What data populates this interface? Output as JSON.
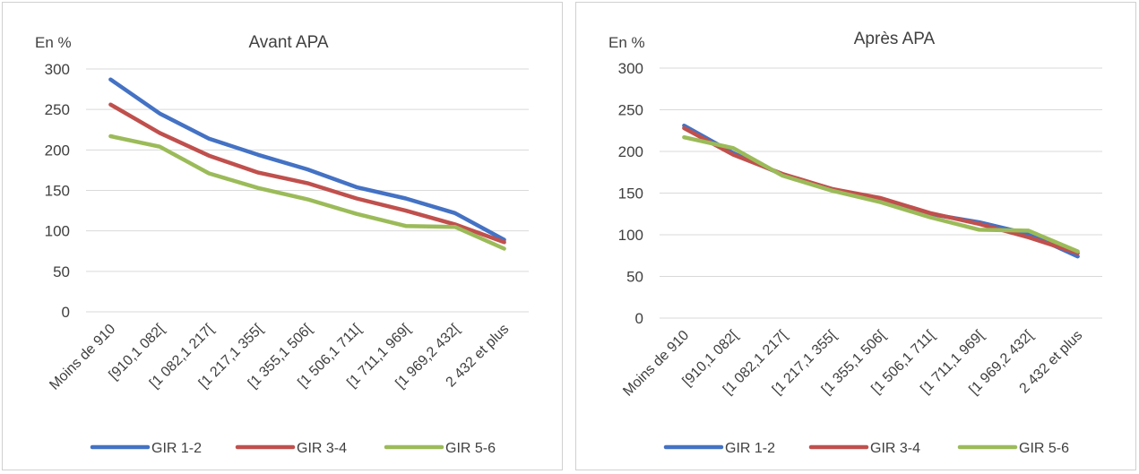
{
  "chart_data": [
    {
      "type": "line",
      "title": "Avant APA",
      "ylabel": "En %",
      "ylim": [
        0,
        300
      ],
      "yticks": [
        "0",
        "50",
        "100",
        "150",
        "200",
        "250",
        "300"
      ],
      "categories": [
        "Moins de 910",
        "[910,1 082[",
        "[1 082,1 217[",
        "[1 217,1 355[",
        "[1 355,1 506[",
        "[1 506,1 711[",
        "[1 711,1 969[",
        "[1 969,2 432[",
        "2 432 et plus"
      ],
      "legend_position": "bottom",
      "grid": true,
      "series": [
        {
          "name": "GIR 1-2",
          "color": "#4472c4",
          "values": [
            287,
            245,
            214,
            194,
            176,
            154,
            140,
            122,
            89
          ]
        },
        {
          "name": "GIR 3-4",
          "color": "#c0504d",
          "values": [
            256,
            221,
            193,
            172,
            159,
            140,
            125,
            108,
            86
          ]
        },
        {
          "name": "GIR 5-6",
          "color": "#9bbb59",
          "values": [
            217,
            204,
            171,
            153,
            139,
            121,
            106,
            105,
            78
          ]
        }
      ]
    },
    {
      "type": "line",
      "title": "Après APA",
      "ylabel": "En %",
      "ylim": [
        0,
        300
      ],
      "yticks": [
        "0",
        "50",
        "100",
        "150",
        "200",
        "250",
        "300"
      ],
      "categories": [
        "Moins de 910",
        "[910,1 082[",
        "[1 082,1 217[",
        "[1 217,1 355[",
        "[1 355,1 506[",
        "[1 506,1 711[",
        "[1 711,1 969[",
        "[1 969,2 432[",
        "2 432 et plus"
      ],
      "legend_position": "bottom",
      "grid": true,
      "series": [
        {
          "name": "GIR 1-2",
          "color": "#4472c4",
          "values": [
            231,
            198,
            172,
            155,
            141,
            125,
            115,
            101,
            74
          ]
        },
        {
          "name": "GIR 3-4",
          "color": "#c0504d",
          "values": [
            228,
            196,
            173,
            155,
            144,
            126,
            113,
            97,
            78
          ]
        },
        {
          "name": "GIR 5-6",
          "color": "#9bbb59",
          "values": [
            217,
            204,
            171,
            153,
            139,
            121,
            106,
            105,
            80
          ]
        }
      ]
    }
  ]
}
